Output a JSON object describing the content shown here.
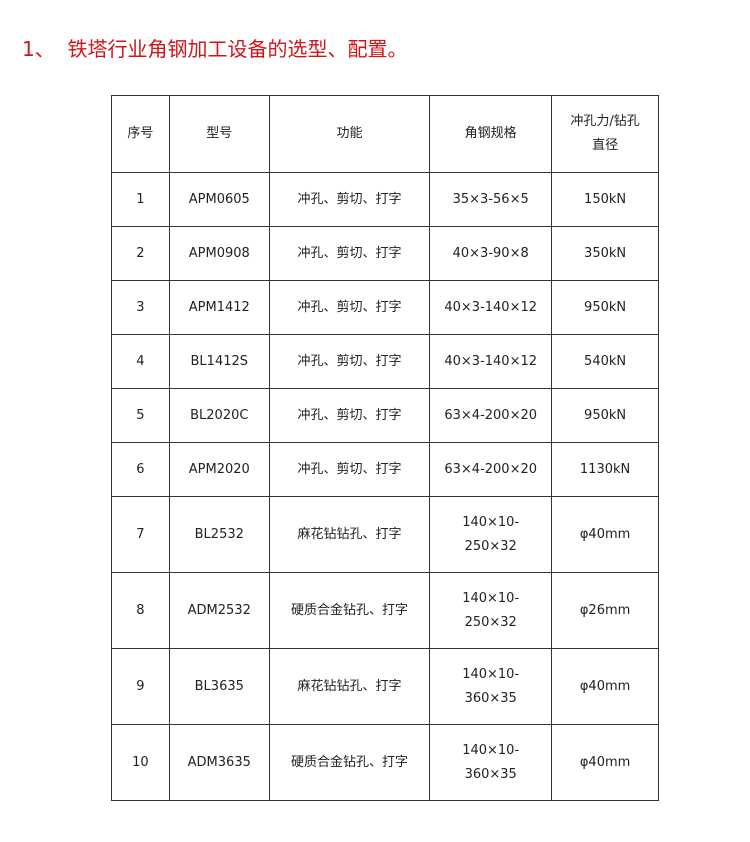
{
  "title": "1、  铁塔行业角钢加工设备的选型、配置。",
  "headers": [
    "序号",
    "型号",
    "功能",
    "角钢规格",
    "冲孔力/钻孔直径"
  ],
  "rows": [
    [
      "1",
      "APM0605",
      "冲孔、剪切、打字",
      "35×3-56×5",
      "150kN"
    ],
    [
      "2",
      "APM0908",
      "冲孔、剪切、打字",
      "40×3-90×8",
      "350kN"
    ],
    [
      "3",
      "APM1412",
      "冲孔、剪切、打字",
      "40×3-140×12",
      "950kN"
    ],
    [
      "4",
      "BL1412S",
      "冲孔、剪切、打字",
      "40×3-140×12",
      "540kN"
    ],
    [
      "5",
      "BL2020C",
      "冲孔、剪切、打字",
      "63×4-200×20",
      "950kN"
    ],
    [
      "6",
      "APM2020",
      "冲孔、剪切、打字",
      "63×4-200×20",
      "1130kN"
    ],
    [
      "7",
      "BL2532",
      "麻花钻钻孔、打字",
      "140×10-250×32",
      "φ40mm"
    ],
    [
      "8",
      "ADM2532",
      "硬质合金钻孔、打字",
      "140×10-250×32",
      "φ26mm"
    ],
    [
      "9",
      "BL3635",
      "麻花钻钻孔、打字",
      "140×10-360×35",
      "φ40mm"
    ],
    [
      "10",
      "ADM3635",
      "硬质合金钻孔、打字",
      "140×10-360×35",
      "φ40mm"
    ]
  ]
}
